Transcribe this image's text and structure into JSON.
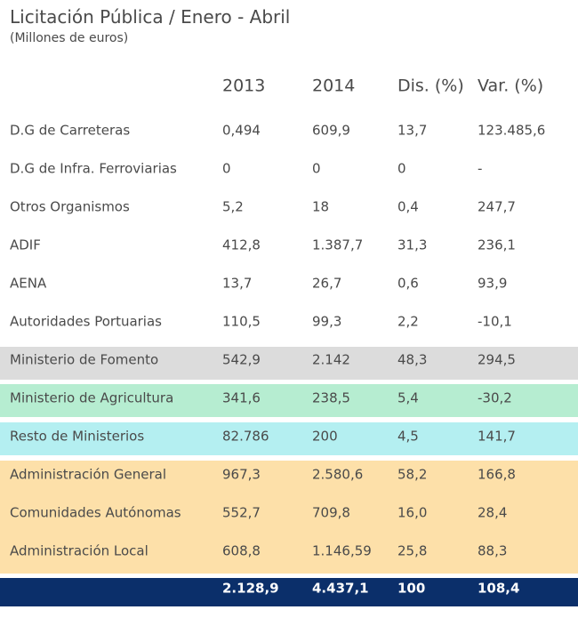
{
  "header": {
    "title": "Licitación Pública / Enero - Abril",
    "subtitle": "(Millones de euros)"
  },
  "table": {
    "columns": [
      "2013",
      "2014",
      "Dis. (%)",
      "Var. (%)"
    ],
    "rows": [
      [
        "D.G de Carreteras",
        "0,494",
        "609,9",
        "13,7",
        "123.485,6"
      ],
      [
        "D.G de Infra. Ferroviarias",
        "0",
        "0",
        "0",
        "-"
      ],
      [
        "Otros Organismos",
        "5,2",
        "18",
        "0,4",
        "247,7"
      ],
      [
        "ADIF",
        "412,8",
        "1.387,7",
        "31,3",
        "236,1"
      ],
      [
        "AENA",
        "13,7",
        "26,7",
        "0,6",
        "93,9"
      ],
      [
        "Autoridades Portuarias",
        "110,5",
        "99,3",
        "2,2",
        "-10,1"
      ],
      [
        "Ministerio de Fomento",
        "542,9",
        "2.142",
        "48,3",
        "294,5"
      ],
      [
        "Ministerio de Agricultura",
        "341,6",
        "238,5",
        "5,4",
        "-30,2"
      ],
      [
        "Resto de Ministerios",
        "82.786",
        "200",
        "4,5",
        "141,7"
      ],
      [
        "Administración General",
        "967,3",
        "2.580,6",
        "58,2",
        "166,8"
      ],
      [
        "Comunidades Autónomas",
        "552,7",
        "709,8",
        "16,0",
        "28,4"
      ],
      [
        "Administración Local",
        "608,8",
        "1.146,59",
        "25,8",
        "88,3"
      ]
    ],
    "total": [
      "2.128,9",
      "4.437,1",
      "100",
      "108,4"
    ]
  }
}
